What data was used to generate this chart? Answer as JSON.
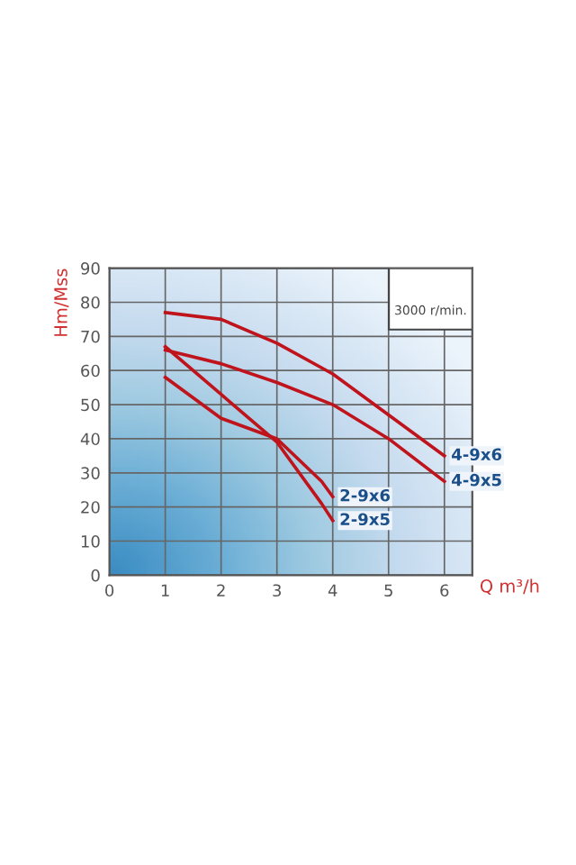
{
  "chart_data": {
    "type": "line",
    "subtitle": "3000 r/min.",
    "xlabel": "Q m³/h",
    "ylabel": "Hm/Mss",
    "xlim": [
      0,
      6.5
    ],
    "ylim": [
      0,
      90
    ],
    "xticks": [
      0,
      1,
      2,
      3,
      4,
      5,
      6
    ],
    "yticks": [
      0,
      10,
      20,
      30,
      40,
      50,
      60,
      70,
      80,
      90
    ],
    "grid": true,
    "marker": "none",
    "line_style": "solid",
    "series": [
      {
        "name": "4-9x6",
        "color": "#c0141c",
        "x": [
          1,
          2,
          3,
          4,
          5,
          6
        ],
        "values": [
          77,
          75,
          68,
          59,
          47,
          35
        ]
      },
      {
        "name": "4-9x5",
        "color": "#c0141c",
        "x": [
          1,
          2,
          3,
          4,
          5,
          6
        ],
        "values": [
          66,
          62,
          56.5,
          50,
          40,
          27.5
        ]
      },
      {
        "name": "2-9x6",
        "color": "#c0141c",
        "x": [
          1,
          2,
          3,
          3.8,
          4
        ],
        "values": [
          58,
          46,
          40,
          27.5,
          23
        ]
      },
      {
        "name": "2-9x5",
        "color": "#c0141c",
        "x": [
          1,
          2,
          3,
          3.8,
          4
        ],
        "values": [
          67,
          53,
          39,
          21,
          16
        ]
      }
    ]
  }
}
